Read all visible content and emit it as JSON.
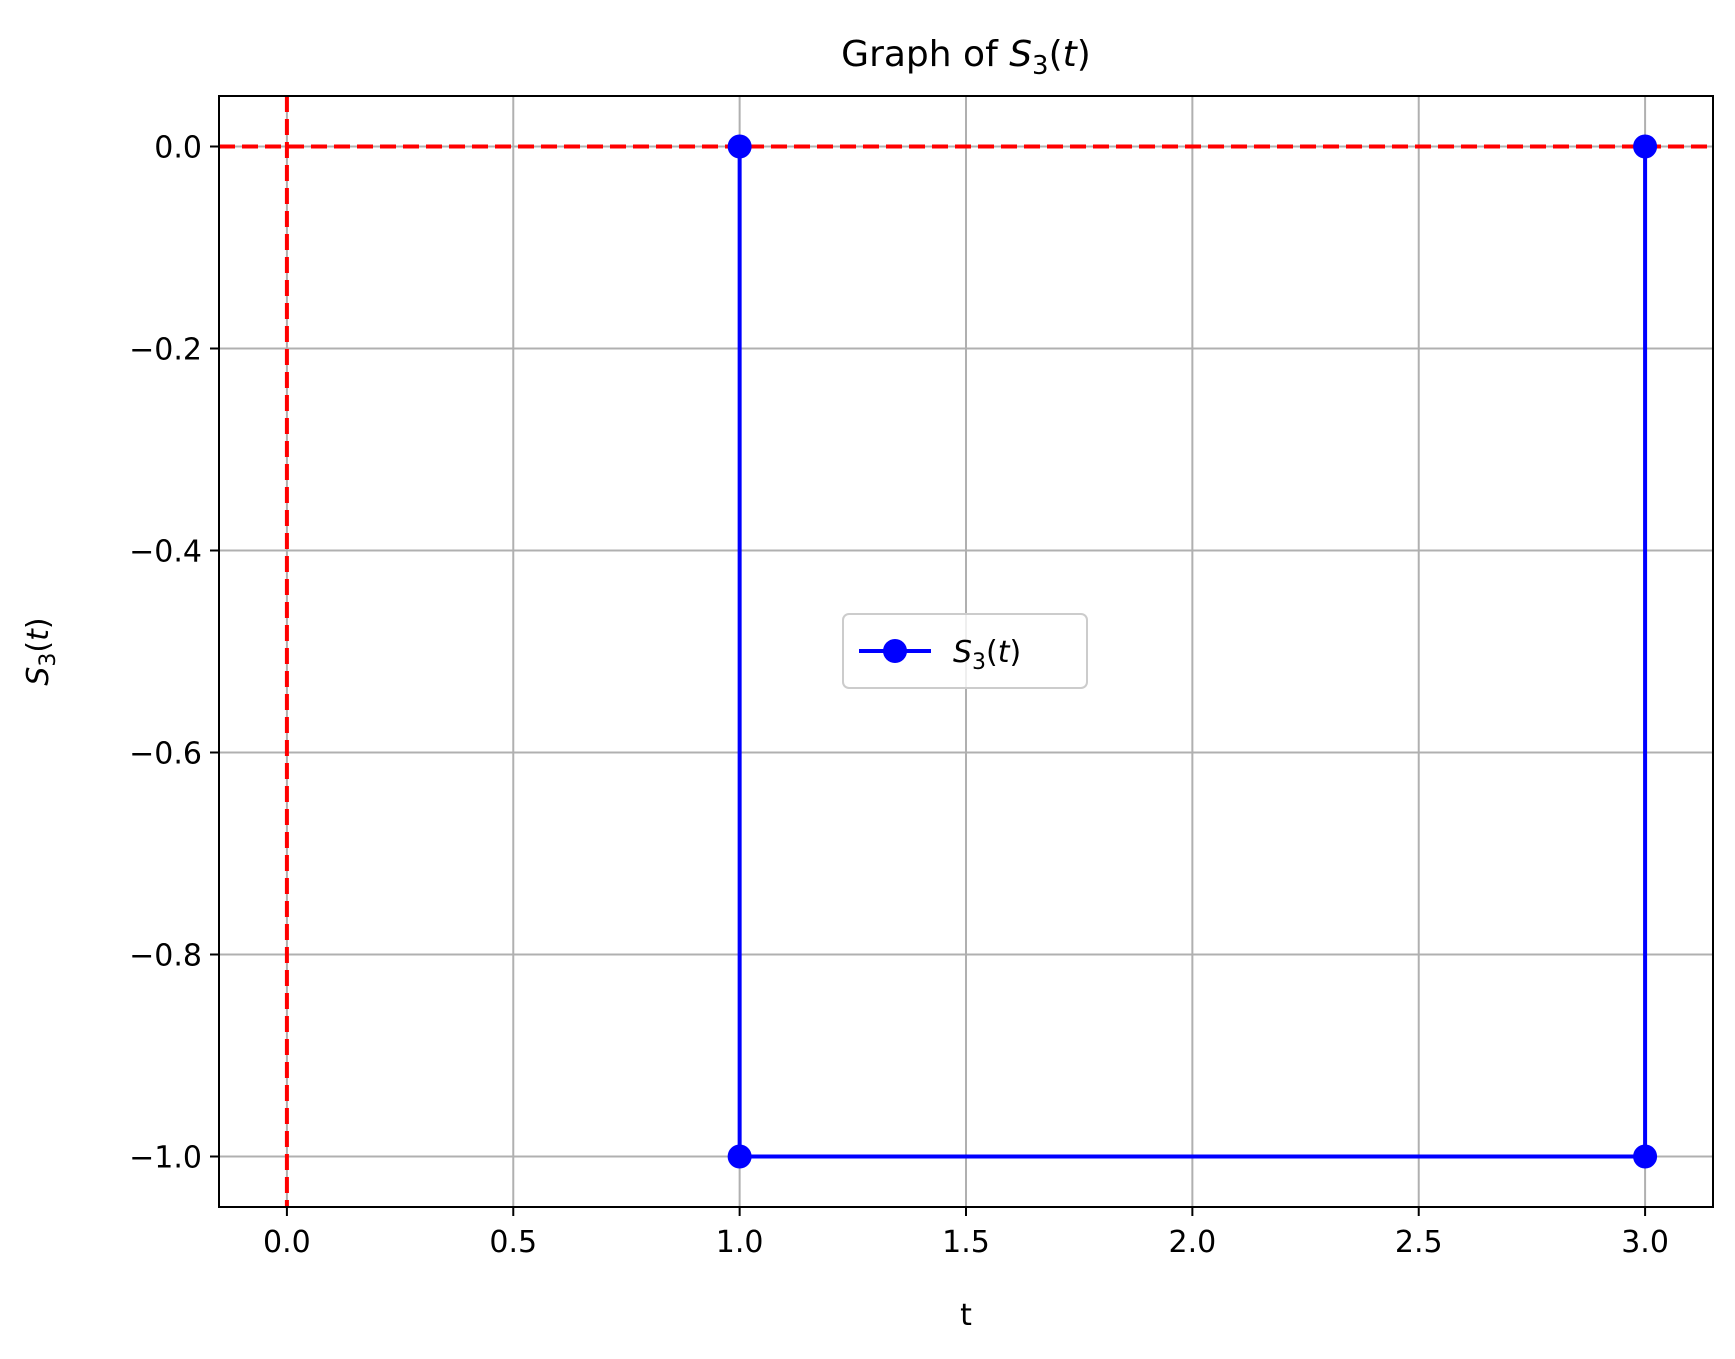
{
  "chart_data": {
    "type": "line",
    "title": "Graph of S₃(t)",
    "xlabel": "t",
    "ylabel": "S₃(t)",
    "xlim": [
      -0.15,
      3.15
    ],
    "ylim": [
      -1.05,
      0.05
    ],
    "xticks": [
      0.0,
      0.5,
      1.0,
      1.5,
      2.0,
      2.5,
      3.0
    ],
    "xtick_labels": [
      "0.0",
      "0.5",
      "1.0",
      "1.5",
      "2.0",
      "2.5",
      "3.0"
    ],
    "yticks": [
      0.0,
      -0.2,
      -0.4,
      -0.6,
      -0.8,
      -1.0
    ],
    "ytick_labels": [
      "0.0",
      "−0.2",
      "−0.4",
      "−0.6",
      "−0.8",
      "−1.0"
    ],
    "grid": true,
    "legend_position": "center",
    "series": [
      {
        "name": "S₃(t)",
        "color": "#0000ff",
        "marker": "circle",
        "x": [
          1.0,
          1.0,
          3.0,
          3.0
        ],
        "y": [
          0.0,
          -1.0,
          -1.0,
          0.0
        ]
      }
    ],
    "reference_lines": [
      {
        "orientation": "horizontal",
        "value": 0.0,
        "color": "#ff0000",
        "style": "dashed"
      },
      {
        "orientation": "vertical",
        "value": 0.0,
        "color": "#ff0000",
        "style": "dashed"
      }
    ],
    "title_parts": {
      "prefix": "Graph of ",
      "var": "S",
      "sub": "3",
      "open": "(",
      "arg": "t",
      "close": ")"
    }
  }
}
